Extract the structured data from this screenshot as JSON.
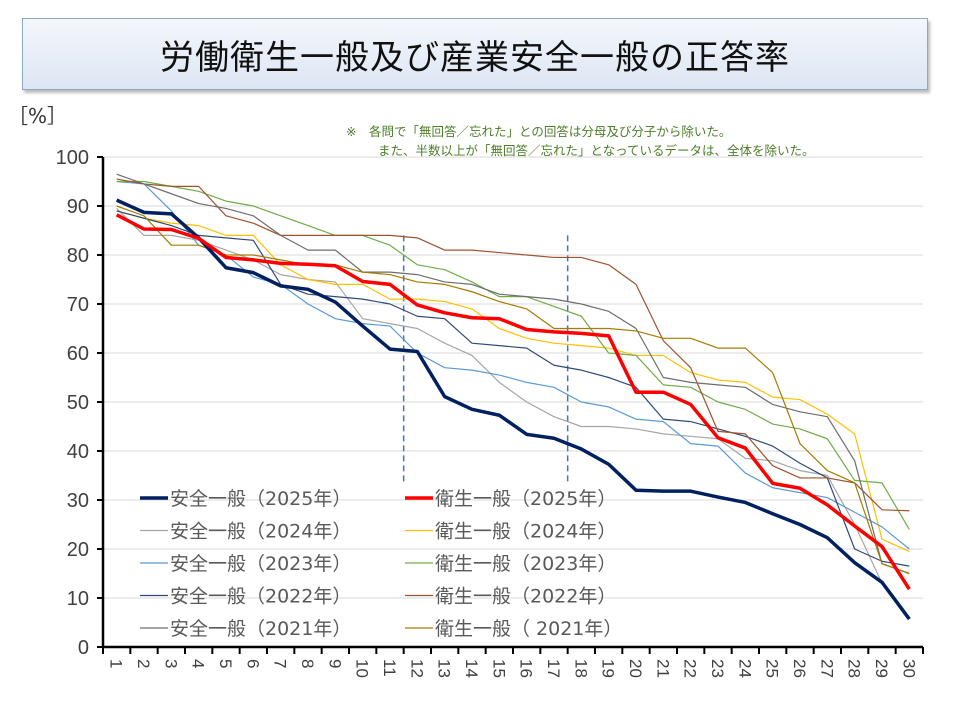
{
  "chart_data": {
    "type": "line",
    "title": "労働衛生一般及び産業安全一般の正答率",
    "ylabel": "［%］",
    "ylim": [
      0,
      100
    ],
    "yticks": [
      0,
      10,
      20,
      30,
      40,
      50,
      60,
      70,
      80,
      90,
      100
    ],
    "x": [
      1,
      2,
      3,
      4,
      5,
      6,
      7,
      8,
      9,
      10,
      11,
      12,
      13,
      14,
      15,
      16,
      17,
      18,
      19,
      20,
      21,
      22,
      23,
      24,
      25,
      26,
      27,
      28,
      29,
      30
    ],
    "grid": "horizontal",
    "legend_placement": "bottom-left",
    "notes": [
      "※　各問で「無回答／忘れた」との回答は分母及び分子から除いた。",
      "また、半数以上が「無回答／忘れた」となっているデータは、全体を除いた。"
    ],
    "vertical_markers": [
      11.5,
      17.5
    ],
    "series": [
      {
        "name": "安全一般（2025年）",
        "color": "#002060",
        "width": "thick",
        "values": [
          91.2,
          88.7,
          88.4,
          83.5,
          77.4,
          76.4,
          73.7,
          73,
          70.4,
          65.5,
          60.8,
          60.3,
          51.1,
          48.5,
          47.3,
          43.4,
          42.6,
          40.4,
          37.3,
          32,
          31.8,
          31.8,
          30.6,
          29.5,
          27.2,
          25,
          22.3,
          17.2,
          13.2,
          5.7
        ]
      },
      {
        "name": "衛生一般（2025年）",
        "color": "#ff0000",
        "width": "thick",
        "values": [
          88.2,
          85.3,
          85.2,
          83.4,
          79.5,
          79,
          78.3,
          78.1,
          77.8,
          74.6,
          74,
          69.8,
          68.2,
          67.2,
          67,
          64.8,
          64.3,
          64,
          63.5,
          52,
          52,
          49.5,
          42.7,
          40.6,
          33.4,
          32.4,
          29,
          24.7,
          20.5,
          11.8
        ]
      },
      {
        "name": "安全一般（2024年）",
        "color": "#a6a6a6",
        "width": "thin",
        "values": [
          89.5,
          84,
          84,
          83,
          81,
          79,
          76,
          75,
          74.5,
          67,
          66,
          65,
          62,
          59.5,
          54,
          50,
          47,
          45,
          45,
          44.5,
          43.5,
          43,
          42.5,
          38.5,
          38,
          36,
          35,
          25,
          13,
          6
        ]
      },
      {
        "name": "衛生一般（2024年）",
        "color": "#ffc000",
        "width": "thin",
        "values": [
          89,
          87.5,
          86.5,
          86,
          84,
          84,
          78,
          75,
          74,
          74,
          71,
          71,
          70.5,
          69,
          65,
          63,
          62,
          61.5,
          61,
          59.5,
          59.5,
          56,
          54.5,
          54,
          51,
          50.5,
          47.5,
          43.5,
          22,
          19.5
        ]
      },
      {
        "name": "安全一般（2023年）",
        "color": "#5b9bd5",
        "width": "thin",
        "values": [
          95,
          94.5,
          89,
          82,
          80,
          75.5,
          74,
          70,
          67,
          66,
          65.5,
          60,
          57,
          56.5,
          55.5,
          54,
          53,
          50,
          49,
          46.5,
          46,
          41.5,
          41,
          35.5,
          32.5,
          31.5,
          30.5,
          27.5,
          24.5,
          20
        ]
      },
      {
        "name": "衛生一般（2023年）",
        "color": "#70ad47",
        "width": "thin",
        "values": [
          95,
          95,
          94,
          93,
          91,
          90,
          88,
          86,
          84,
          84,
          82,
          78,
          77,
          74.5,
          71.5,
          71.5,
          69.5,
          67.5,
          60,
          59.5,
          53.5,
          53,
          50,
          48.5,
          45.5,
          44.5,
          42.5,
          34,
          33.5,
          24
        ]
      },
      {
        "name": "安全一般（2022年）",
        "color": "#2f4a7a",
        "width": "thin",
        "values": [
          89,
          87.5,
          86,
          84,
          83.5,
          83,
          74,
          72,
          71.5,
          71,
          70,
          67.5,
          67,
          62,
          61.5,
          61,
          57.5,
          56.5,
          55,
          53,
          46.5,
          46,
          44.5,
          43,
          41,
          37.5,
          34.5,
          20,
          17.5,
          16.5
        ]
      },
      {
        "name": "衛生一般（2022年）",
        "color": "#a0522d",
        "width": "thin",
        "values": [
          95.5,
          94.5,
          94,
          94,
          88,
          86.5,
          84,
          84,
          84,
          84,
          84,
          83.5,
          81,
          81,
          80.5,
          80,
          79.5,
          79.5,
          78,
          74,
          62.5,
          57,
          44,
          43.5,
          37,
          34.5,
          34.5,
          33.5,
          28,
          27.8
        ]
      },
      {
        "name": "安全一般（2021年）",
        "color": "#6d6d6d",
        "width": "thin",
        "values": [
          96.5,
          94.5,
          92.5,
          90.5,
          89.5,
          88,
          84,
          81,
          81,
          76.5,
          76.5,
          76,
          74.5,
          74,
          72,
          71.5,
          71,
          70,
          68.5,
          65,
          55,
          54,
          53.5,
          53,
          49.5,
          48,
          47,
          38,
          17,
          15
        ]
      },
      {
        "name": "衛生一般（ 2021年）",
        "color": "#a67c00",
        "width": "thin",
        "values": [
          90,
          88,
          82,
          82,
          80,
          80,
          79,
          78,
          78,
          76.5,
          76,
          74.5,
          74,
          72.5,
          70.5,
          69,
          65,
          65,
          65,
          64.5,
          63,
          63,
          61,
          61,
          56,
          41.5,
          36,
          33.5,
          17,
          15
        ]
      }
    ]
  }
}
